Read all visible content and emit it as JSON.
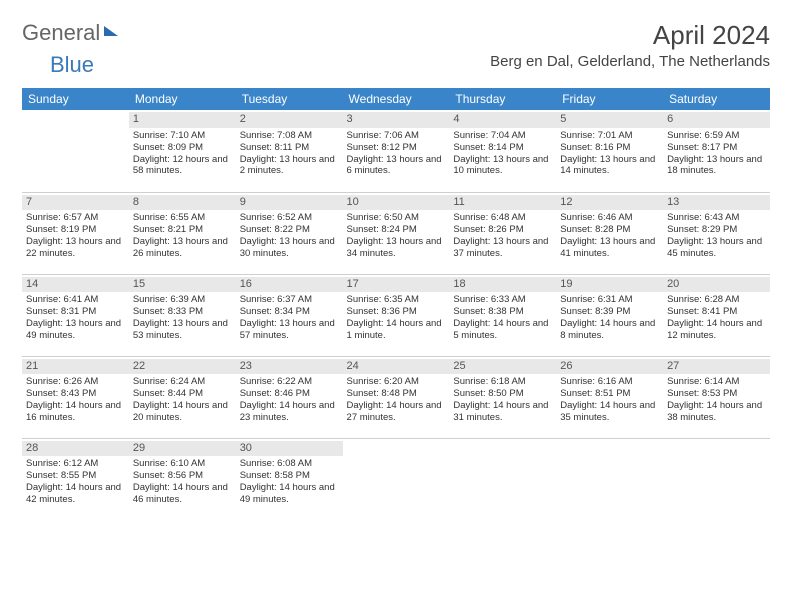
{
  "logo": {
    "general": "General",
    "blue": "Blue"
  },
  "title": "April 2024",
  "location": "Berg en Dal, Gelderland, The Netherlands",
  "day_headers": [
    "Sunday",
    "Monday",
    "Tuesday",
    "Wednesday",
    "Thursday",
    "Friday",
    "Saturday"
  ],
  "header_bg": "#3a85c9",
  "header_fg": "#ffffff",
  "daynum_bg": "#e8e8e8",
  "border_color": "#cfcfcf",
  "font_family": "Arial",
  "cells": [
    {
      "n": "",
      "sr": "",
      "ss": "",
      "dl": ""
    },
    {
      "n": "1",
      "sr": "7:10 AM",
      "ss": "8:09 PM",
      "dl": "12 hours and 58 minutes."
    },
    {
      "n": "2",
      "sr": "7:08 AM",
      "ss": "8:11 PM",
      "dl": "13 hours and 2 minutes."
    },
    {
      "n": "3",
      "sr": "7:06 AM",
      "ss": "8:12 PM",
      "dl": "13 hours and 6 minutes."
    },
    {
      "n": "4",
      "sr": "7:04 AM",
      "ss": "8:14 PM",
      "dl": "13 hours and 10 minutes."
    },
    {
      "n": "5",
      "sr": "7:01 AM",
      "ss": "8:16 PM",
      "dl": "13 hours and 14 minutes."
    },
    {
      "n": "6",
      "sr": "6:59 AM",
      "ss": "8:17 PM",
      "dl": "13 hours and 18 minutes."
    },
    {
      "n": "7",
      "sr": "6:57 AM",
      "ss": "8:19 PM",
      "dl": "13 hours and 22 minutes."
    },
    {
      "n": "8",
      "sr": "6:55 AM",
      "ss": "8:21 PM",
      "dl": "13 hours and 26 minutes."
    },
    {
      "n": "9",
      "sr": "6:52 AM",
      "ss": "8:22 PM",
      "dl": "13 hours and 30 minutes."
    },
    {
      "n": "10",
      "sr": "6:50 AM",
      "ss": "8:24 PM",
      "dl": "13 hours and 34 minutes."
    },
    {
      "n": "11",
      "sr": "6:48 AM",
      "ss": "8:26 PM",
      "dl": "13 hours and 37 minutes."
    },
    {
      "n": "12",
      "sr": "6:46 AM",
      "ss": "8:28 PM",
      "dl": "13 hours and 41 minutes."
    },
    {
      "n": "13",
      "sr": "6:43 AM",
      "ss": "8:29 PM",
      "dl": "13 hours and 45 minutes."
    },
    {
      "n": "14",
      "sr": "6:41 AM",
      "ss": "8:31 PM",
      "dl": "13 hours and 49 minutes."
    },
    {
      "n": "15",
      "sr": "6:39 AM",
      "ss": "8:33 PM",
      "dl": "13 hours and 53 minutes."
    },
    {
      "n": "16",
      "sr": "6:37 AM",
      "ss": "8:34 PM",
      "dl": "13 hours and 57 minutes."
    },
    {
      "n": "17",
      "sr": "6:35 AM",
      "ss": "8:36 PM",
      "dl": "14 hours and 1 minute."
    },
    {
      "n": "18",
      "sr": "6:33 AM",
      "ss": "8:38 PM",
      "dl": "14 hours and 5 minutes."
    },
    {
      "n": "19",
      "sr": "6:31 AM",
      "ss": "8:39 PM",
      "dl": "14 hours and 8 minutes."
    },
    {
      "n": "20",
      "sr": "6:28 AM",
      "ss": "8:41 PM",
      "dl": "14 hours and 12 minutes."
    },
    {
      "n": "21",
      "sr": "6:26 AM",
      "ss": "8:43 PM",
      "dl": "14 hours and 16 minutes."
    },
    {
      "n": "22",
      "sr": "6:24 AM",
      "ss": "8:44 PM",
      "dl": "14 hours and 20 minutes."
    },
    {
      "n": "23",
      "sr": "6:22 AM",
      "ss": "8:46 PM",
      "dl": "14 hours and 23 minutes."
    },
    {
      "n": "24",
      "sr": "6:20 AM",
      "ss": "8:48 PM",
      "dl": "14 hours and 27 minutes."
    },
    {
      "n": "25",
      "sr": "6:18 AM",
      "ss": "8:50 PM",
      "dl": "14 hours and 31 minutes."
    },
    {
      "n": "26",
      "sr": "6:16 AM",
      "ss": "8:51 PM",
      "dl": "14 hours and 35 minutes."
    },
    {
      "n": "27",
      "sr": "6:14 AM",
      "ss": "8:53 PM",
      "dl": "14 hours and 38 minutes."
    },
    {
      "n": "28",
      "sr": "6:12 AM",
      "ss": "8:55 PM",
      "dl": "14 hours and 42 minutes."
    },
    {
      "n": "29",
      "sr": "6:10 AM",
      "ss": "8:56 PM",
      "dl": "14 hours and 46 minutes."
    },
    {
      "n": "30",
      "sr": "6:08 AM",
      "ss": "8:58 PM",
      "dl": "14 hours and 49 minutes."
    },
    {
      "n": "",
      "sr": "",
      "ss": "",
      "dl": ""
    },
    {
      "n": "",
      "sr": "",
      "ss": "",
      "dl": ""
    },
    {
      "n": "",
      "sr": "",
      "ss": "",
      "dl": ""
    },
    {
      "n": "",
      "sr": "",
      "ss": "",
      "dl": ""
    }
  ],
  "labels": {
    "sunrise": "Sunrise: ",
    "sunset": "Sunset: ",
    "daylight": "Daylight: "
  }
}
